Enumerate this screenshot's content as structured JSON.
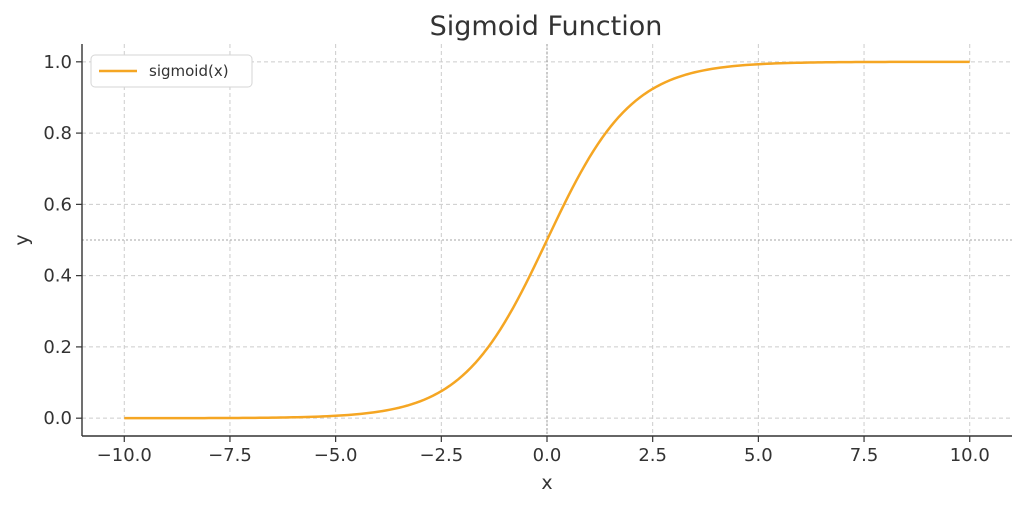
{
  "chart_data": {
    "type": "line",
    "title": "Sigmoid Function",
    "xlabel": "x",
    "ylabel": "y",
    "xlim": [
      -11,
      11
    ],
    "ylim": [
      -0.05,
      1.05
    ],
    "xticks": [
      -10.0,
      -7.5,
      -5.0,
      -2.5,
      0.0,
      2.5,
      5.0,
      7.5,
      10.0
    ],
    "xtick_labels": [
      "−10.0",
      "−7.5",
      "−5.0",
      "−2.5",
      "0.0",
      "2.5",
      "5.0",
      "7.5",
      "10.0"
    ],
    "yticks": [
      0.0,
      0.2,
      0.4,
      0.6,
      0.8,
      1.0
    ],
    "ytick_labels": [
      "0.0",
      "0.2",
      "0.4",
      "0.6",
      "0.8",
      "1.0"
    ],
    "grid": true,
    "legend_position": "top-left",
    "reference_lines": {
      "x": 0,
      "y": 0.5
    },
    "series": [
      {
        "name": "sigmoid(x)",
        "color": "#f5a623",
        "x": [
          -10,
          -9,
          -8,
          -7,
          -6,
          -5,
          -4,
          -3,
          -2.5,
          -2,
          -1.5,
          -1,
          -0.5,
          0,
          0.5,
          1,
          1.5,
          2,
          2.5,
          3,
          4,
          5,
          6,
          7,
          8,
          9,
          10
        ],
        "y": [
          0.0,
          0.0001,
          0.0003,
          0.0009,
          0.0025,
          0.0067,
          0.018,
          0.0474,
          0.0759,
          0.1192,
          0.1824,
          0.2689,
          0.3775,
          0.5,
          0.6225,
          0.7311,
          0.8176,
          0.8808,
          0.9241,
          0.9526,
          0.982,
          0.9933,
          0.9975,
          0.9991,
          0.9997,
          0.9999,
          1.0
        ]
      }
    ]
  }
}
